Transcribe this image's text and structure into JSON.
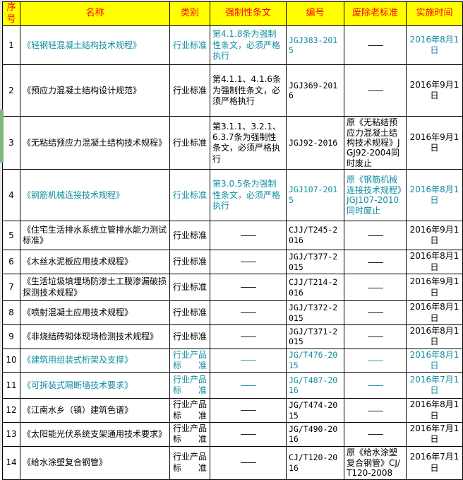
{
  "table": {
    "header_labels": [
      "序号",
      "名称",
      "类别",
      "强制性条文",
      "编号",
      "废除老标准",
      "实施时间"
    ],
    "rows": [
      {
        "seq": "1",
        "name": "《轻钢轻混凝土结构技术规程》",
        "category": "行业标准",
        "mandatory": "第4.1.8条为强制性条文，必须严格执行",
        "code": "JGJ383-2015",
        "abolished": "——",
        "date": "2016年8月1日",
        "cell_colors": [
          "black",
          "teal",
          "teal",
          "teal",
          "teal",
          "black",
          "teal"
        ]
      },
      {
        "seq": "2",
        "name": "《预应力混凝土结构设计规范》",
        "category": "行业标准",
        "mandatory": "第4.1.1、4.1.6条为强制性条文，必须严格执行",
        "code": "JGJ369-2016",
        "abolished": "——",
        "date": "2016年9月1日",
        "cell_colors": [
          "black",
          "black",
          "black",
          "black",
          "black",
          "black",
          "black"
        ]
      },
      {
        "seq": "3",
        "name": "《无粘结预应力混凝土结构技术规程》",
        "category": "行业标准",
        "mandatory": "第3.1.1、3.2.1、6.3.7条为强制性条文，必须严格执行",
        "code": "JGJ92-2016",
        "abolished": "原《无粘结预应力混凝土结构技术规程》JGJ92-2004同时废止",
        "date": "2016年9月1日",
        "cell_colors": [
          "black",
          "black",
          "black",
          "black",
          "black",
          "black",
          "black"
        ]
      },
      {
        "seq": "4",
        "name": "《钢筋机械连接技术规程》",
        "category": "行业标准",
        "mandatory": "第3.0.5条为强制性条文，必须严格执行",
        "code": "JGJ107-2015",
        "abolished": "原《钢筋机械连接技术规程》JGJ107-2010同时废止",
        "date": "2016年8月1日",
        "cell_colors": [
          "black",
          "teal",
          "teal",
          "teal",
          "teal",
          "teal",
          "teal"
        ]
      },
      {
        "seq": "5",
        "name": "《住宅生活排水系统立管排水能力测试标准》",
        "category": "行业标准",
        "mandatory": "——",
        "code": "CJJ/T245-2016",
        "abolished": "——",
        "date": "2016年9月1日",
        "cell_colors": [
          "black",
          "black",
          "black",
          "black",
          "black",
          "black",
          "black"
        ]
      },
      {
        "seq": "6",
        "name": "《木丝水泥板应用技术规程》",
        "category": "行业标准",
        "mandatory": "——",
        "code": "JGJ/T377-2015",
        "abolished": "——",
        "date": "2016年8月1日",
        "cell_colors": [
          "black",
          "black",
          "black",
          "black",
          "black",
          "black",
          "black"
        ]
      },
      {
        "seq": "7",
        "name": "《生活垃圾填埋场防渗土工膜渗漏破损探测技术规程》",
        "category": "行业标准",
        "mandatory": "——",
        "code": "CJJ/T214-2016",
        "abolished": "——",
        "date": "2016年9月1日",
        "cell_colors": [
          "black",
          "black",
          "black",
          "black",
          "black",
          "black",
          "black"
        ]
      },
      {
        "seq": "8",
        "name": "《喷射混凝土应用技术规程》",
        "category": "行业标准",
        "mandatory": "——",
        "code": "JGJ/T372-2015",
        "abolished": "——",
        "date": "2016年8月1日",
        "cell_colors": [
          "black",
          "black",
          "black",
          "black",
          "black",
          "black",
          "black"
        ]
      },
      {
        "seq": "9",
        "name": "《非烧结砖砌体现场检测技术规程》",
        "category": "行业标准",
        "mandatory": "——",
        "code": "JGJ/T371-2015",
        "abolished": "——",
        "date": "2016年8月1日",
        "cell_colors": [
          "black",
          "black",
          "black",
          "black",
          "black",
          "black",
          "black"
        ]
      },
      {
        "seq": "10",
        "name": "《建筑用组装式桁架及支撑》",
        "category": "行业产品\n标　　准",
        "mandatory": "——",
        "code": "JG/T476-2015",
        "abolished": "——",
        "date": "2016年8月1日",
        "cell_colors": [
          "black",
          "teal",
          "teal",
          "teal",
          "teal",
          "teal",
          "teal"
        ]
      },
      {
        "seq": "11",
        "name": "《可拆装式隔断墙技术要求》",
        "category": "行业产品\n标　　准",
        "mandatory": "——",
        "code": "JG/T487-2016",
        "abolished": "——",
        "date": "2016年7月1日",
        "cell_colors": [
          "black",
          "teal",
          "teal",
          "teal",
          "teal",
          "teal",
          "teal"
        ]
      },
      {
        "seq": "12",
        "name": "《江南水乡（镇）建筑色谱》",
        "category": "行业产品\n标　　准",
        "mandatory": "——",
        "code": "JG/T474-2015",
        "abolished": "——",
        "date": "2016年8月1日",
        "cell_colors": [
          "black",
          "black",
          "black",
          "black",
          "black",
          "black",
          "black"
        ]
      },
      {
        "seq": "13",
        "name": "《太阳能光伏系统支架通用技术要求》",
        "category": "行业产品\n标　　准",
        "mandatory": "——",
        "code": "JG/T490-2016",
        "abolished": "——",
        "date": "2016年7月1日",
        "cell_colors": [
          "black",
          "black",
          "black",
          "black",
          "black",
          "black",
          "black"
        ]
      },
      {
        "seq": "14",
        "name": "《给水涂塑复合钢管》",
        "category": "行业产品\n标　　准",
        "mandatory": "——",
        "code": "CJ/T120-2016",
        "abolished": "原《给水涂塑复合钢管》CJ/T120-2008",
        "date": "2016年7月1日",
        "cell_colors": [
          "black",
          "black",
          "black",
          "black",
          "black",
          "black",
          "black"
        ]
      }
    ]
  },
  "colors": {
    "header_bg": "#ffff00",
    "header_text": "#ff0000",
    "teal_text": "#108da2",
    "black_text": "#000000",
    "grid": "#000000",
    "row_marker_green": "#7cb87a"
  },
  "marker": {
    "beside_row_seq": "3"
  }
}
